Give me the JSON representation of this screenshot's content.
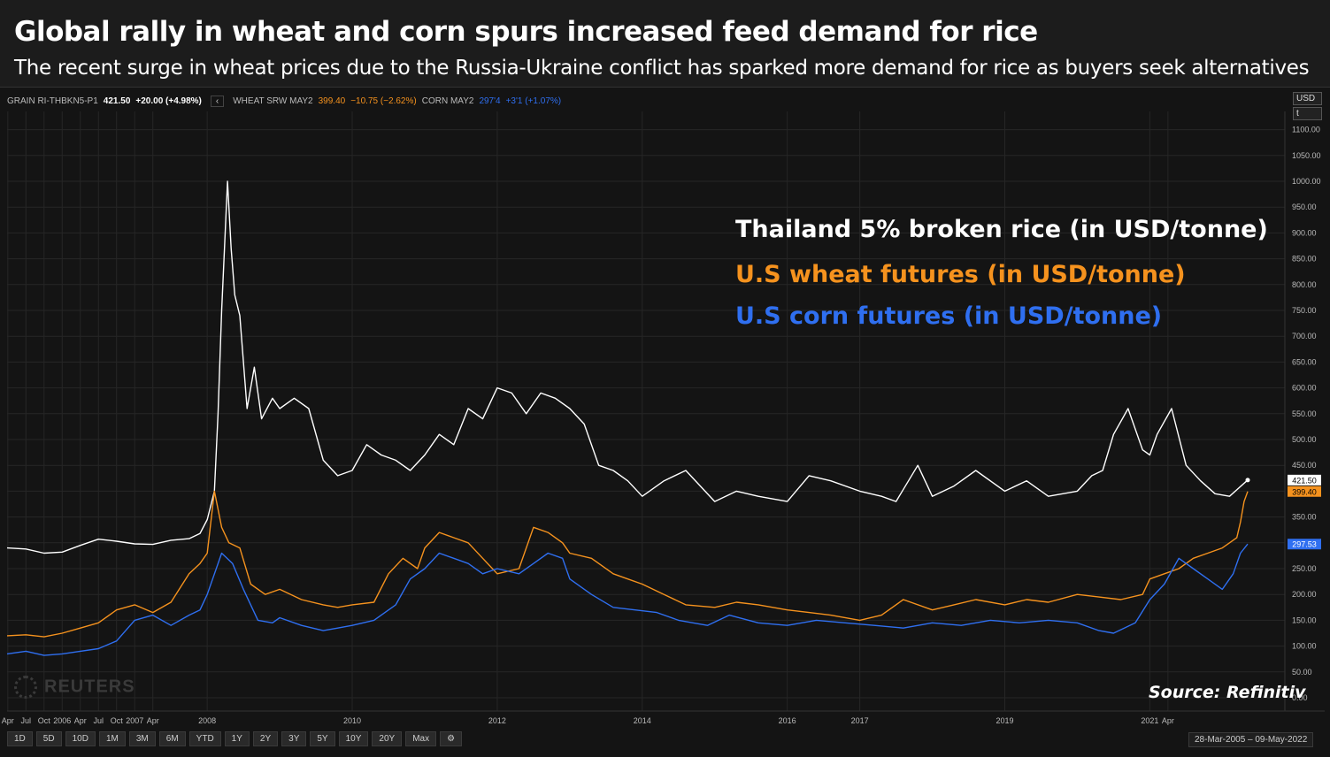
{
  "headline": "Global rally in wheat and corn spurs increased feed demand for rice",
  "subheadline": "The recent surge in wheat prices due to the Russia-Ukraine conflict has sparked more demand for rice as buyers seek alternatives",
  "legend": {
    "rice_ric": "GRAIN RI-THBKN5-P1",
    "rice_value": "421.50",
    "rice_change": "+20.00 (+4.98%)",
    "back_symbol": "‹",
    "wheat_ric": "WHEAT SRW MAY2",
    "wheat_value": "399.40",
    "wheat_change": "−10.75 (−2.62%)",
    "corn_ric": "CORN MAY2",
    "corn_value": "297'4",
    "corn_change": "+3'1 (+1.07%)"
  },
  "currency": {
    "unit": "USD",
    "sub": "t"
  },
  "annotations": {
    "rice": "Thailand 5% broken rice (in USD/tonne)",
    "wheat": "U.S wheat futures (in USD/tonne)",
    "corn": "U.S corn futures (in USD/tonne)"
  },
  "source": "Source: Refinitiv",
  "watermark": "REUTERS",
  "range_buttons": [
    "1D",
    "5D",
    "10D",
    "1M",
    "3M",
    "6M",
    "YTD",
    "1Y",
    "2Y",
    "3Y",
    "5Y",
    "10Y",
    "20Y",
    "Max"
  ],
  "date_range": "28-Mar-2005 – 09-May-2022",
  "colors": {
    "rice": "#ffffff",
    "wheat": "#f5921e",
    "corn": "#2f6ff0",
    "background": "#141414",
    "grid": "#262626"
  },
  "chart_data": {
    "type": "line",
    "title": "Global rally in wheat and corn spurs increased feed demand for rice",
    "ylabel": "USD/tonne",
    "ylim": [
      0,
      1150
    ],
    "xlim": [
      2005.24,
      2022.35
    ],
    "y_ticks": [
      0,
      50,
      100,
      150,
      200,
      250,
      300,
      350,
      400,
      450,
      500,
      550,
      600,
      650,
      700,
      750,
      800,
      850,
      900,
      950,
      1000,
      1050,
      1100
    ],
    "x_ticks": [
      {
        "label": "Apr",
        "x": 2005.25
      },
      {
        "label": "Jul",
        "x": 2005.5
      },
      {
        "label": "Oct",
        "x": 2005.75
      },
      {
        "label": "2006",
        "x": 2006.0
      },
      {
        "label": "Apr",
        "x": 2006.25
      },
      {
        "label": "Jul",
        "x": 2006.5
      },
      {
        "label": "Oct",
        "x": 2006.75
      },
      {
        "label": "2007",
        "x": 2007.0
      },
      {
        "label": "Apr",
        "x": 2007.25
      },
      {
        "label": "2008",
        "x": 2008.0
      },
      {
        "label": "2010",
        "x": 2010.0
      },
      {
        "label": "2012",
        "x": 2012.0
      },
      {
        "label": "2014",
        "x": 2014.0
      },
      {
        "label": "2016",
        "x": 2016.0
      },
      {
        "label": "2017",
        "x": 2017.0
      },
      {
        "label": "2019",
        "x": 2019.0
      },
      {
        "label": "2021",
        "x": 2021.0
      },
      {
        "label": "Apr",
        "x": 2021.25
      }
    ],
    "last_values": [
      {
        "name": "rice",
        "value": "421.50",
        "y": 421.5
      },
      {
        "name": "wheat",
        "value": "399.40",
        "y": 399.4
      },
      {
        "name": "corn",
        "value": "297.53",
        "y": 297.53
      }
    ],
    "series": [
      {
        "name": "Thailand 5% broken rice",
        "color": "#ffffff",
        "x": [
          2005.24,
          2005.5,
          2005.75,
          2006.0,
          2006.25,
          2006.5,
          2006.75,
          2007.0,
          2007.25,
          2007.5,
          2007.75,
          2007.9,
          2008.0,
          2008.1,
          2008.15,
          2008.2,
          2008.28,
          2008.33,
          2008.38,
          2008.45,
          2008.55,
          2008.65,
          2008.75,
          2008.9,
          2009.0,
          2009.2,
          2009.4,
          2009.6,
          2009.8,
          2010.0,
          2010.2,
          2010.4,
          2010.6,
          2010.8,
          2011.0,
          2011.2,
          2011.4,
          2011.6,
          2011.8,
          2012.0,
          2012.2,
          2012.4,
          2012.6,
          2012.8,
          2013.0,
          2013.2,
          2013.4,
          2013.6,
          2013.8,
          2014.0,
          2014.3,
          2014.6,
          2015.0,
          2015.3,
          2015.6,
          2016.0,
          2016.3,
          2016.6,
          2017.0,
          2017.3,
          2017.5,
          2017.8,
          2018.0,
          2018.3,
          2018.6,
          2019.0,
          2019.3,
          2019.6,
          2020.0,
          2020.2,
          2020.35,
          2020.5,
          2020.7,
          2020.9,
          2021.0,
          2021.1,
          2021.3,
          2021.5,
          2021.7,
          2021.9,
          2022.1,
          2022.35
        ],
        "values": [
          290,
          288,
          280,
          282,
          295,
          307,
          303,
          298,
          297,
          305,
          308,
          318,
          345,
          400,
          550,
          750,
          1000,
          870,
          780,
          740,
          560,
          640,
          540,
          580,
          560,
          580,
          560,
          460,
          430,
          440,
          490,
          470,
          460,
          440,
          470,
          510,
          490,
          560,
          540,
          600,
          590,
          550,
          590,
          580,
          560,
          530,
          450,
          440,
          420,
          390,
          420,
          440,
          380,
          400,
          390,
          380,
          430,
          420,
          400,
          390,
          380,
          450,
          390,
          410,
          440,
          400,
          420,
          390,
          400,
          430,
          440,
          510,
          560,
          480,
          470,
          510,
          560,
          450,
          420,
          395,
          390,
          421.5
        ]
      },
      {
        "name": "U.S wheat futures",
        "color": "#f5921e",
        "x": [
          2005.24,
          2005.5,
          2005.75,
          2006.0,
          2006.25,
          2006.5,
          2006.75,
          2007.0,
          2007.25,
          2007.5,
          2007.75,
          2007.9,
          2008.0,
          2008.1,
          2008.2,
          2008.3,
          2008.45,
          2008.6,
          2008.8,
          2009.0,
          2009.3,
          2009.6,
          2009.8,
          2010.0,
          2010.3,
          2010.5,
          2010.7,
          2010.9,
          2011.0,
          2011.2,
          2011.4,
          2011.6,
          2011.8,
          2012.0,
          2012.3,
          2012.5,
          2012.7,
          2012.9,
          2013.0,
          2013.3,
          2013.6,
          2013.8,
          2014.0,
          2014.3,
          2014.6,
          2015.0,
          2015.3,
          2015.6,
          2016.0,
          2016.3,
          2016.6,
          2017.0,
          2017.3,
          2017.6,
          2018.0,
          2018.3,
          2018.6,
          2019.0,
          2019.3,
          2019.6,
          2020.0,
          2020.3,
          2020.6,
          2020.9,
          2021.0,
          2021.2,
          2021.4,
          2021.6,
          2021.8,
          2022.0,
          2022.1,
          2022.2,
          2022.25,
          2022.3,
          2022.35
        ],
        "values": [
          120,
          122,
          118,
          125,
          135,
          145,
          170,
          180,
          165,
          185,
          240,
          260,
          280,
          400,
          330,
          300,
          290,
          220,
          200,
          210,
          190,
          180,
          175,
          180,
          185,
          240,
          270,
          250,
          290,
          320,
          310,
          300,
          270,
          240,
          250,
          330,
          320,
          300,
          280,
          270,
          240,
          230,
          220,
          200,
          180,
          175,
          185,
          180,
          170,
          165,
          160,
          150,
          160,
          190,
          170,
          180,
          190,
          180,
          190,
          185,
          200,
          195,
          190,
          200,
          230,
          240,
          250,
          270,
          280,
          290,
          300,
          310,
          340,
          380,
          399.4
        ]
      },
      {
        "name": "U.S corn futures",
        "color": "#2f6ff0",
        "x": [
          2005.24,
          2005.5,
          2005.75,
          2006.0,
          2006.25,
          2006.5,
          2006.75,
          2007.0,
          2007.25,
          2007.5,
          2007.75,
          2007.9,
          2008.0,
          2008.2,
          2008.35,
          2008.5,
          2008.7,
          2008.9,
          2009.0,
          2009.3,
          2009.6,
          2009.8,
          2010.0,
          2010.3,
          2010.6,
          2010.8,
          2011.0,
          2011.2,
          2011.4,
          2011.6,
          2011.8,
          2012.0,
          2012.3,
          2012.5,
          2012.7,
          2012.9,
          2013.0,
          2013.3,
          2013.6,
          2013.9,
          2014.2,
          2014.5,
          2014.9,
          2015.2,
          2015.6,
          2016.0,
          2016.4,
          2016.8,
          2017.2,
          2017.6,
          2018.0,
          2018.4,
          2018.8,
          2019.2,
          2019.6,
          2020.0,
          2020.3,
          2020.5,
          2020.8,
          2021.0,
          2021.2,
          2021.4,
          2021.6,
          2021.8,
          2022.0,
          2022.15,
          2022.25,
          2022.35
        ],
        "values": [
          85,
          90,
          82,
          85,
          90,
          95,
          110,
          150,
          160,
          140,
          160,
          170,
          200,
          280,
          260,
          210,
          150,
          145,
          155,
          140,
          130,
          135,
          140,
          150,
          180,
          230,
          250,
          280,
          270,
          260,
          240,
          250,
          240,
          260,
          280,
          270,
          230,
          200,
          175,
          170,
          165,
          150,
          140,
          160,
          145,
          140,
          150,
          145,
          140,
          135,
          145,
          140,
          150,
          145,
          150,
          145,
          130,
          125,
          145,
          190,
          220,
          270,
          250,
          230,
          210,
          240,
          280,
          297.53
        ]
      }
    ]
  }
}
